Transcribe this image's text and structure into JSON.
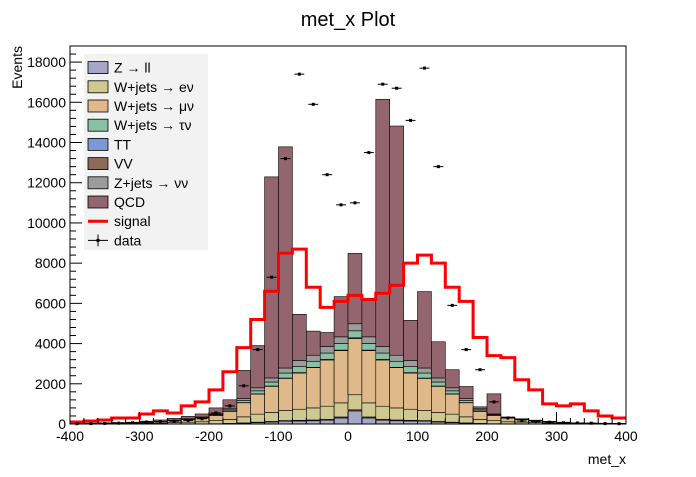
{
  "chart_data": {
    "type": "bar",
    "title": "met_x Plot",
    "xlabel": "met_x",
    "ylabel": "Events",
    "xlim": [
      -400,
      400
    ],
    "ylim": [
      0,
      18800
    ],
    "x_ticks": [
      -400,
      -300,
      -200,
      -100,
      0,
      100,
      200,
      300,
      400
    ],
    "y_ticks": [
      0,
      2000,
      4000,
      6000,
      8000,
      10000,
      12000,
      14000,
      16000,
      18000
    ],
    "bin_edges": [
      -400,
      -380,
      -360,
      -340,
      -320,
      -300,
      -280,
      -260,
      -240,
      -220,
      -200,
      -180,
      -160,
      -140,
      -120,
      -100,
      -80,
      -60,
      -40,
      -20,
      0,
      20,
      40,
      60,
      80,
      100,
      120,
      140,
      160,
      180,
      200,
      220,
      240,
      260,
      280,
      300,
      320,
      340,
      360,
      380,
      400
    ],
    "stack_order": [
      "Z → ll",
      "VV",
      "W+jets → eν",
      "W+jets → μν",
      "TT",
      "W+jets → τν",
      "Z+jets → νν",
      "QCD"
    ],
    "series": [
      {
        "name": "Z → ll",
        "color": "#a6a6c8",
        "values": [
          0,
          0,
          0,
          0,
          0,
          0,
          0,
          0,
          0,
          0,
          10,
          20,
          40,
          70,
          100,
          140,
          150,
          160,
          190,
          300,
          650,
          300,
          190,
          160,
          150,
          140,
          100,
          70,
          40,
          20,
          10,
          0,
          0,
          0,
          0,
          0,
          0,
          0,
          0,
          0
        ]
      },
      {
        "name": "VV",
        "color": "#8b6a59",
        "values": [
          0,
          0,
          0,
          0,
          0,
          0,
          0,
          0,
          0,
          0,
          5,
          10,
          15,
          20,
          25,
          30,
          35,
          40,
          45,
          50,
          55,
          50,
          45,
          40,
          35,
          30,
          25,
          20,
          15,
          10,
          5,
          0,
          0,
          0,
          0,
          0,
          0,
          0,
          0,
          0
        ]
      },
      {
        "name": "W+jets → eν",
        "color": "#cfc890",
        "values": [
          10,
          15,
          20,
          25,
          30,
          40,
          50,
          70,
          90,
          110,
          150,
          200,
          300,
          400,
          450,
          500,
          550,
          600,
          650,
          700,
          750,
          700,
          650,
          600,
          550,
          500,
          450,
          400,
          300,
          200,
          150,
          110,
          90,
          70,
          50,
          40,
          30,
          25,
          20,
          15
        ]
      },
      {
        "name": "W+jets → μν",
        "color": "#e0b98a",
        "values": [
          10,
          15,
          20,
          25,
          30,
          40,
          60,
          90,
          130,
          180,
          250,
          400,
          700,
          1000,
          1300,
          1600,
          1800,
          2000,
          2300,
          2600,
          2800,
          2600,
          2300,
          2000,
          1800,
          1600,
          1300,
          1000,
          700,
          400,
          250,
          180,
          130,
          90,
          60,
          40,
          30,
          25,
          20,
          15
        ]
      },
      {
        "name": "TT",
        "color": "#7b98d8",
        "values": [
          0,
          0,
          0,
          0,
          0,
          0,
          0,
          0,
          0,
          0,
          5,
          5,
          10,
          10,
          15,
          15,
          20,
          20,
          25,
          25,
          30,
          25,
          25,
          20,
          20,
          15,
          15,
          10,
          10,
          5,
          5,
          0,
          0,
          0,
          0,
          0,
          0,
          0,
          0,
          0
        ]
      },
      {
        "name": "W+jets → τν",
        "color": "#89c1a4",
        "values": [
          0,
          0,
          0,
          0,
          0,
          5,
          10,
          15,
          20,
          30,
          40,
          60,
          100,
          150,
          200,
          250,
          300,
          300,
          320,
          330,
          350,
          330,
          320,
          300,
          300,
          250,
          200,
          150,
          100,
          60,
          40,
          30,
          20,
          15,
          10,
          5,
          0,
          0,
          0,
          0
        ]
      },
      {
        "name": "Z+jets → νν",
        "color": "#9c9c9c",
        "values": [
          0,
          0,
          0,
          0,
          0,
          5,
          10,
          15,
          20,
          30,
          40,
          60,
          100,
          150,
          200,
          250,
          300,
          300,
          320,
          330,
          350,
          330,
          320,
          300,
          300,
          250,
          200,
          150,
          100,
          60,
          40,
          30,
          20,
          15,
          10,
          5,
          0,
          0,
          0,
          0
        ]
      },
      {
        "name": "QCD",
        "color": "#93656f",
        "values": [
          10,
          15,
          20,
          25,
          30,
          50,
          70,
          90,
          120,
          150,
          300,
          450,
          1400,
          2100,
          10000,
          11000,
          2300,
          1200,
          700,
          2000,
          3500,
          1800,
          12300,
          11400,
          2000,
          3800,
          1800,
          900,
          600,
          100,
          1000,
          0,
          0,
          0,
          0,
          0,
          0,
          0,
          0,
          0
        ]
      }
    ],
    "signal": {
      "name": "signal",
      "color": "#ff0000",
      "values": [
        100,
        150,
        200,
        300,
        300,
        500,
        650,
        550,
        900,
        1100,
        1700,
        2600,
        3800,
        5200,
        6600,
        8500,
        8700,
        6800,
        5800,
        6100,
        6400,
        6200,
        6500,
        6900,
        8000,
        8400,
        8000,
        6800,
        6100,
        4300,
        3400,
        3300,
        2200,
        1700,
        1000,
        900,
        1000,
        650,
        400,
        300
      ]
    },
    "data": {
      "name": "data",
      "values": [
        15,
        20,
        30,
        40,
        60,
        100,
        120,
        140,
        180,
        260,
        550,
        900,
        1900,
        3700,
        7300,
        13200,
        17400,
        15900,
        12400,
        10900,
        11000,
        13500,
        16900,
        16700,
        15100,
        17700,
        12800,
        5900,
        3700,
        2700,
        1100,
        300,
        150,
        120,
        90,
        60,
        50,
        40,
        20,
        15
      ]
    },
    "legend": {
      "placement": "top-left",
      "entries": [
        {
          "label": "Z → ll",
          "kind": "box",
          "color": "#a6a6c8"
        },
        {
          "label": "W+jets → eν",
          "kind": "box",
          "color": "#cfc890"
        },
        {
          "label": "W+jets → μν",
          "kind": "box",
          "color": "#e0b98a"
        },
        {
          "label": "W+jets → τν",
          "kind": "box",
          "color": "#89c1a4"
        },
        {
          "label": "TT",
          "kind": "box",
          "color": "#7b98d8"
        },
        {
          "label": "VV",
          "kind": "box",
          "color": "#8b6a59"
        },
        {
          "label": "Z+jets → νν",
          "kind": "box",
          "color": "#9c9c9c"
        },
        {
          "label": "QCD",
          "kind": "box",
          "color": "#93656f"
        },
        {
          "label": "signal",
          "kind": "line",
          "color": "#ff0000"
        },
        {
          "label": "data",
          "kind": "marker",
          "color": "#000000"
        }
      ]
    },
    "grid": false
  }
}
